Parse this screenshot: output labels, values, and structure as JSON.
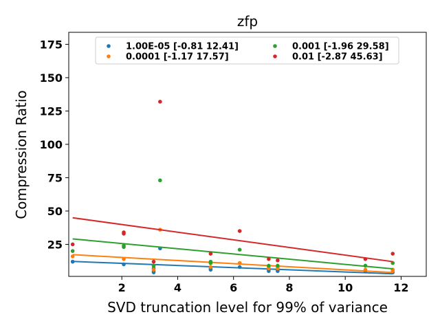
{
  "chart_data": {
    "type": "scatter",
    "title": "zfp",
    "xlabel": "SVD truncation level for 99% of variance",
    "ylabel": "Compression Ratio",
    "xlim": [
      0.1,
      12.9
    ],
    "ylim": [
      1,
      184
    ],
    "xticks": [
      2,
      4,
      6,
      8,
      10,
      12
    ],
    "xtick_labels": [
      "2",
      "4",
      "6",
      "8",
      "10",
      "12"
    ],
    "yticks": [
      25,
      50,
      75,
      100,
      125,
      150,
      175
    ],
    "ytick_labels": [
      "25",
      "50",
      "75",
      "100",
      "125",
      "150",
      "175"
    ],
    "legend": {
      "location": "top",
      "columns": 2
    },
    "grid": false,
    "series": [
      {
        "name": "1.00E-05 [-0.81 12.41]",
        "color": "#1f77b4",
        "fit": {
          "slope": -0.81,
          "intercept": 12.41
        },
        "points": [
          [
            0.24,
            12
          ],
          [
            2.07,
            10
          ],
          [
            3.14,
            7
          ],
          [
            3.14,
            5
          ],
          [
            3.14,
            4
          ],
          [
            3.37,
            22
          ],
          [
            5.18,
            7
          ],
          [
            5.18,
            6
          ],
          [
            6.22,
            8
          ],
          [
            7.26,
            5
          ],
          [
            7.26,
            6
          ],
          [
            7.58,
            5
          ],
          [
            7.58,
            6
          ],
          [
            10.72,
            5
          ],
          [
            11.7,
            6
          ],
          [
            11.7,
            4
          ]
        ]
      },
      {
        "name": "0.0001 [-1.17 17.57]",
        "color": "#ff7f0e",
        "fit": {
          "slope": -1.17,
          "intercept": 17.57
        },
        "points": [
          [
            0.24,
            16
          ],
          [
            2.07,
            14
          ],
          [
            3.14,
            9
          ],
          [
            3.14,
            6
          ],
          [
            3.37,
            36
          ],
          [
            5.18,
            11
          ],
          [
            5.18,
            8
          ],
          [
            6.22,
            11
          ],
          [
            7.26,
            7
          ],
          [
            7.26,
            8
          ],
          [
            7.58,
            7
          ],
          [
            7.58,
            8
          ],
          [
            10.72,
            6
          ],
          [
            11.7,
            6
          ],
          [
            11.7,
            5
          ]
        ]
      },
      {
        "name": "0.001 [-1.96 29.58]",
        "color": "#2ca02c",
        "fit": {
          "slope": -1.96,
          "intercept": 29.58
        },
        "points": [
          [
            0.24,
            20
          ],
          [
            2.07,
            24
          ],
          [
            2.07,
            23
          ],
          [
            3.14,
            9
          ],
          [
            3.37,
            73
          ],
          [
            5.18,
            12
          ],
          [
            5.18,
            11
          ],
          [
            6.22,
            21
          ],
          [
            7.26,
            9
          ],
          [
            7.58,
            9
          ],
          [
            10.72,
            9
          ],
          [
            11.7,
            11
          ]
        ]
      },
      {
        "name": "0.01 [-2.87 45.63]",
        "color": "#d62728",
        "fit": {
          "slope": -2.87,
          "intercept": 45.63
        },
        "points": [
          [
            0.24,
            25
          ],
          [
            2.07,
            34
          ],
          [
            2.07,
            33
          ],
          [
            3.14,
            12
          ],
          [
            3.37,
            132
          ],
          [
            5.18,
            18
          ],
          [
            6.22,
            35
          ],
          [
            7.26,
            14
          ],
          [
            7.58,
            13
          ],
          [
            10.72,
            14
          ],
          [
            11.7,
            18
          ]
        ]
      }
    ]
  }
}
